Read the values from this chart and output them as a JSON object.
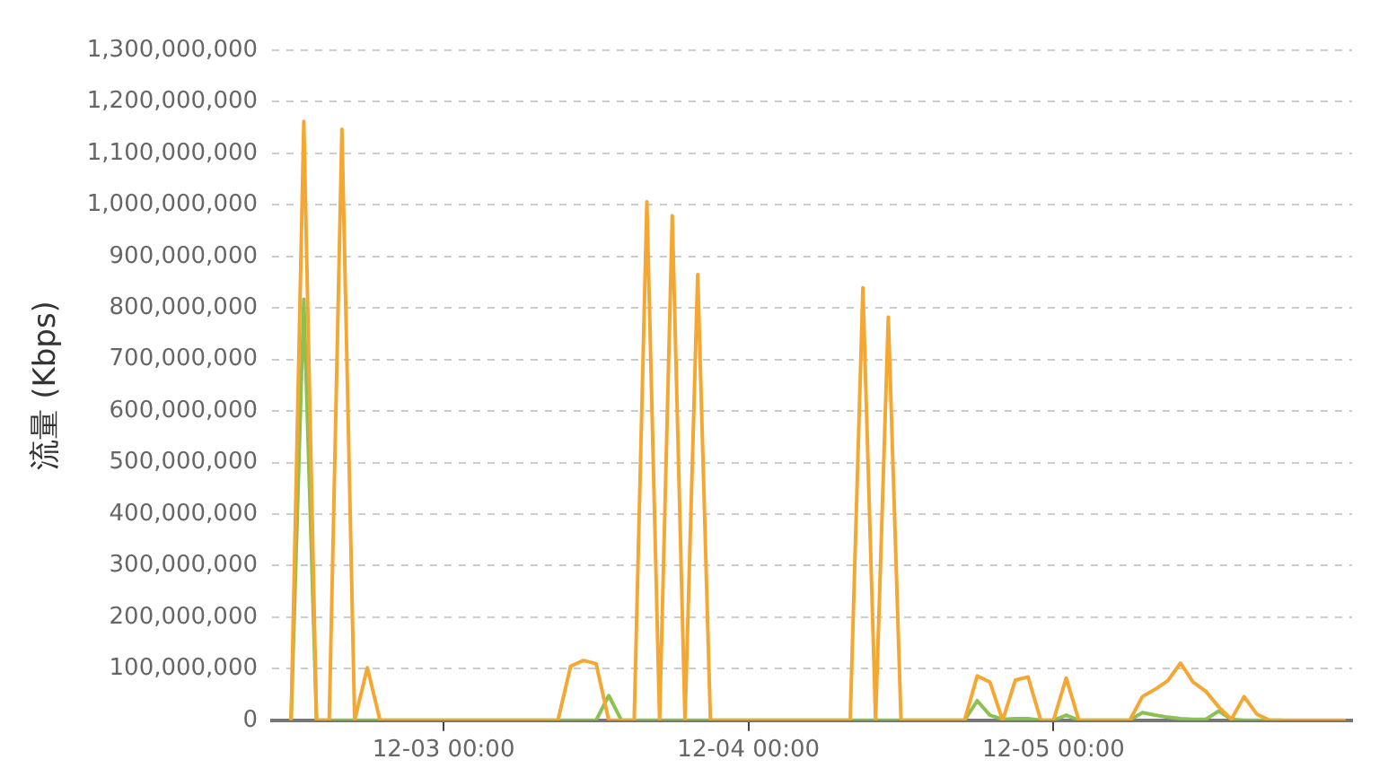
{
  "chart_data": {
    "type": "line",
    "ylabel": "流量 (Kbps)",
    "x": [
      "--12-02T12:00",
      "--12-02T13:00",
      "--12-02T14:00",
      "--12-02T15:00",
      "--12-02T16:00",
      "--12-02T17:00",
      "--12-02T18:00",
      "--12-02T19:00",
      "--12-02T20:00",
      "--12-02T21:00",
      "--12-02T22:00",
      "--12-02T23:00",
      "--12-03T00:00",
      "--12-03T01:00",
      "--12-03T02:00",
      "--12-03T03:00",
      "--12-03T04:00",
      "--12-03T05:00",
      "--12-03T06:00",
      "--12-03T07:00",
      "--12-03T08:00",
      "--12-03T09:00",
      "--12-03T10:00",
      "--12-03T11:00",
      "--12-03T12:00",
      "--12-03T13:00",
      "--12-03T14:00",
      "--12-03T15:00",
      "--12-03T16:00",
      "--12-03T17:00",
      "--12-03T18:00",
      "--12-03T19:00",
      "--12-03T20:00",
      "--12-03T21:00",
      "--12-03T22:00",
      "--12-03T23:00",
      "--12-04T00:00",
      "--12-04T01:00",
      "--12-04T02:00",
      "--12-04T03:00",
      "--12-04T04:00",
      "--12-04T05:00",
      "--12-04T06:00",
      "--12-04T07:00",
      "--12-04T08:00",
      "--12-04T09:00",
      "--12-04T10:00",
      "--12-04T11:00",
      "--12-04T12:00",
      "--12-04T13:00",
      "--12-04T14:00",
      "--12-04T15:00",
      "--12-04T16:00",
      "--12-04T17:00",
      "--12-04T18:00",
      "--12-04T19:00",
      "--12-04T20:00",
      "--12-04T21:00",
      "--12-04T22:00",
      "--12-04T23:00",
      "--12-05T00:00",
      "--12-05T01:00",
      "--12-05T02:00",
      "--12-05T03:00",
      "--12-05T04:00",
      "--12-05T05:00",
      "--12-05T06:00",
      "--12-05T07:00",
      "--12-05T08:00",
      "--12-05T09:00",
      "--12-05T10:00",
      "--12-05T11:00",
      "--12-05T12:00",
      "--12-05T13:00",
      "--12-05T14:00",
      "--12-05T15:00",
      "--12-05T16:00",
      "--12-05T17:00",
      "--12-05T18:00",
      "--12-05T19:00",
      "--12-05T20:00",
      "--12-05T21:00",
      "--12-05T22:00",
      "--12-05T23:00"
    ],
    "series": [
      {
        "color": "#8cc152",
        "values": [
          0,
          817000000,
          0,
          0,
          0,
          0,
          0,
          0,
          0,
          0,
          0,
          0,
          0,
          0,
          0,
          0,
          0,
          0,
          0,
          0,
          0,
          0,
          0,
          0,
          0,
          48000000,
          0,
          0,
          0,
          0,
          0,
          0,
          0,
          0,
          0,
          0,
          0,
          0,
          0,
          0,
          0,
          0,
          0,
          0,
          0,
          0,
          0,
          0,
          0,
          0,
          0,
          0,
          0,
          0,
          38000000,
          10000000,
          2000000,
          3000000,
          3000000,
          0,
          0,
          10000000,
          0,
          0,
          0,
          0,
          0,
          15000000,
          10000000,
          6000000,
          3000000,
          2000000,
          2000000,
          18000000,
          2000000,
          0,
          0,
          0,
          0,
          null,
          null,
          null,
          null,
          null
        ]
      },
      {
        "color": "#f5a733",
        "values": [
          0,
          1162000000,
          0,
          0,
          1147000000,
          0,
          102000000,
          0,
          0,
          0,
          0,
          0,
          0,
          0,
          0,
          0,
          0,
          0,
          0,
          0,
          0,
          0,
          105000000,
          116000000,
          110000000,
          0,
          0,
          0,
          1006000000,
          0,
          979000000,
          0,
          865000000,
          0,
          0,
          0,
          0,
          0,
          0,
          0,
          0,
          0,
          0,
          0,
          0,
          839000000,
          0,
          782000000,
          0,
          0,
          0,
          0,
          0,
          0,
          86000000,
          74000000,
          0,
          78000000,
          84000000,
          0,
          0,
          82000000,
          0,
          0,
          0,
          0,
          0,
          46000000,
          60000000,
          77000000,
          111000000,
          74000000,
          56000000,
          26000000,
          2000000,
          46000000,
          12000000,
          0,
          0,
          0,
          0,
          0,
          0,
          0
        ]
      }
    ],
    "xlim": [
      "--12-02T10:30",
      "--12-05T23:30"
    ],
    "xticks": [
      {
        "value": "--12-03T00:00",
        "label": "12-03 00:00"
      },
      {
        "value": "--12-04T00:00",
        "label": "12-04 00:00"
      },
      {
        "value": "--12-05T00:00",
        "label": "12-05 00:00"
      }
    ],
    "ylim": [
      0,
      1300000000
    ],
    "yticks": [
      0,
      {
        "value": 100000000,
        "label": "100,000,000"
      },
      {
        "value": 200000000,
        "label": "200,000,000"
      },
      {
        "value": 300000000,
        "label": "300,000,000"
      },
      {
        "value": 400000000,
        "label": "400,000,000"
      },
      {
        "value": 500000000,
        "label": "500,000,000"
      },
      {
        "value": 600000000,
        "label": "600,000,000"
      },
      {
        "value": 700000000,
        "label": "700,000,000"
      },
      {
        "value": 800000000,
        "label": "800,000,000"
      },
      {
        "value": 900000000,
        "label": "900,000,000"
      },
      {
        "value": 1000000000,
        "label": "1,000,000,000"
      },
      {
        "value": 1100000000,
        "label": "1,100,000,000"
      },
      {
        "value": 1200000000,
        "label": "1,200,000,000"
      },
      {
        "value": 1300000000,
        "label": "1,300,000,000"
      }
    ],
    "grid": "y",
    "legend": false,
    "marker": "none",
    "line_style": "solid"
  }
}
